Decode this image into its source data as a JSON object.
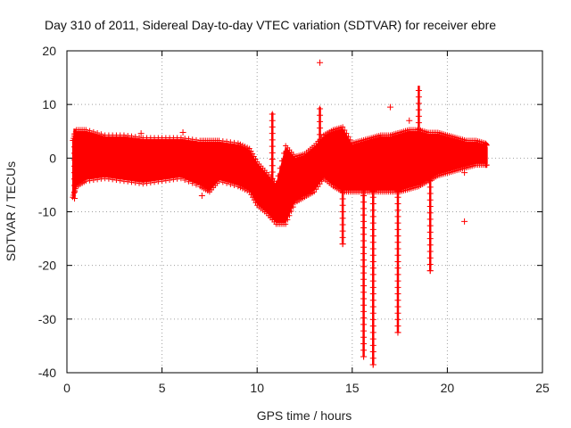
{
  "chart_data": {
    "type": "scatter",
    "title": "Day 310 of 2011, Sidereal Day-to-day VTEC variation (SDTVAR) for receiver ebre",
    "xlabel": "GPS time / hours",
    "ylabel": "SDTVAR / TECUs",
    "xlim": [
      0,
      25
    ],
    "ylim": [
      -40,
      20
    ],
    "xticks": [
      0,
      5,
      10,
      15,
      20,
      25
    ],
    "yticks": [
      -40,
      -30,
      -20,
      -10,
      0,
      10,
      20
    ],
    "grid": true,
    "marker": "+",
    "color": "#ff0000",
    "series": [
      {
        "name": "SDTVAR",
        "band_x": [
          0.3,
          0.5,
          1.0,
          2.0,
          3.0,
          4.0,
          5.0,
          6.0,
          7.0,
          7.5,
          8.0,
          9.0,
          9.6,
          10.0,
          10.5,
          11.0,
          11.5,
          12.0,
          12.5,
          13.0,
          13.5,
          14.0,
          14.5,
          15.0,
          15.5,
          16.0,
          16.5,
          17.0,
          17.5,
          18.0,
          18.5,
          19.0,
          19.5,
          20.0,
          20.5,
          21.0,
          21.5,
          22.0,
          22.1
        ],
        "band_upper": [
          3,
          5,
          5,
          4,
          4,
          3.5,
          3.5,
          3.5,
          3,
          3,
          3,
          2.5,
          1.5,
          -1,
          -3,
          -5,
          2,
          0,
          0.5,
          2,
          4,
          5,
          5.5,
          2.5,
          3,
          3.5,
          4,
          4,
          4.5,
          5,
          5,
          4.5,
          4.5,
          4,
          3.5,
          3,
          3,
          2.5,
          2
        ],
        "band_lower": [
          -7,
          -5,
          -4,
          -3.5,
          -4,
          -4.5,
          -4,
          -3.5,
          -5,
          -6,
          -4,
          -5,
          -6,
          -8.5,
          -10,
          -12,
          -12,
          -8,
          -7,
          -6,
          -3.5,
          -5,
          -6,
          -6,
          -6,
          -6,
          -6,
          -6,
          -6,
          -5.5,
          -5,
          -4,
          -3,
          -2.5,
          -2,
          -1.5,
          -1,
          -1,
          -1
        ],
        "spikes": [
          {
            "x": 0.4,
            "min": -7.5,
            "max": 5.5
          },
          {
            "x": 10.8,
            "min": -11.0,
            "max": 8.5
          },
          {
            "x": 13.3,
            "min": -4.0,
            "max": 9.5
          },
          {
            "x": 14.5,
            "min": -16.0,
            "max": 2.0
          },
          {
            "x": 15.6,
            "min": -37.0,
            "max": 2.0
          },
          {
            "x": 16.1,
            "min": -38.5,
            "max": 2.0
          },
          {
            "x": 17.4,
            "min": -32.5,
            "max": 2.0
          },
          {
            "x": 18.5,
            "min": -3.0,
            "max": 13.5
          },
          {
            "x": 19.1,
            "min": -21.0,
            "max": 2.0
          }
        ],
        "outliers": [
          {
            "x": 13.3,
            "y": 17.8
          },
          {
            "x": 17.0,
            "y": 9.5
          },
          {
            "x": 18.0,
            "y": 7.0
          },
          {
            "x": 20.9,
            "y": -11.8
          },
          {
            "x": 20.9,
            "y": -2.7
          },
          {
            "x": 7.1,
            "y": -7.0
          },
          {
            "x": 3.9,
            "y": 4.6
          },
          {
            "x": 6.1,
            "y": 4.8
          }
        ]
      }
    ]
  }
}
